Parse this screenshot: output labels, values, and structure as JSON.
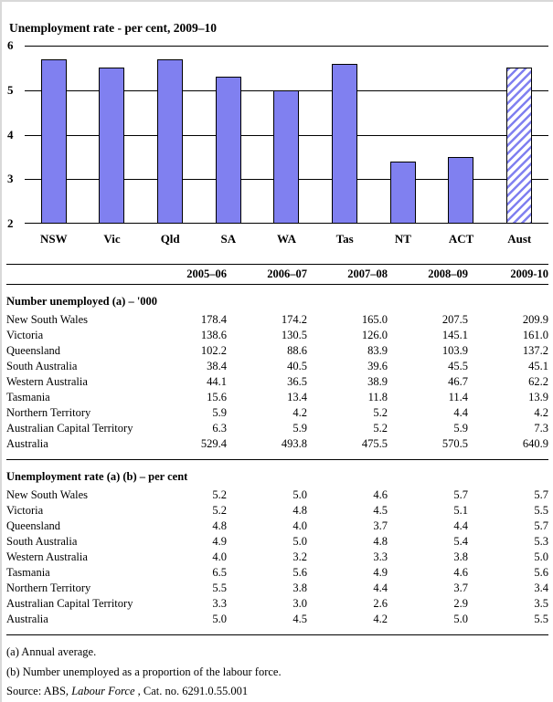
{
  "chart_data": {
    "type": "bar",
    "title": "Unemployment rate - per cent, 2009–10",
    "categories": [
      "NSW",
      "Vic",
      "Qld",
      "SA",
      "WA",
      "Tas",
      "NT",
      "ACT",
      "Aust"
    ],
    "values": [
      5.7,
      5.5,
      5.7,
      5.3,
      5.0,
      5.6,
      3.4,
      3.5,
      5.5
    ],
    "hatched_category": "Aust",
    "xlabel": "",
    "ylabel": "",
    "ylim": [
      2,
      6
    ],
    "yticks": [
      2,
      3,
      4,
      5,
      6
    ],
    "grid": true,
    "legend": "none",
    "bar_color": "#8080F0",
    "bar_border_color": "#000000"
  },
  "table": {
    "col_headers": [
      "2005–06",
      "2006–07",
      "2007–08",
      "2008–09",
      "2009-10"
    ],
    "sections": [
      {
        "heading": "Number unemployed (a) – '000",
        "rows": [
          {
            "label": "New South Wales",
            "values": [
              "178.4",
              "174.2",
              "165.0",
              "207.5",
              "209.9"
            ]
          },
          {
            "label": "Victoria",
            "values": [
              "138.6",
              "130.5",
              "126.0",
              "145.1",
              "161.0"
            ]
          },
          {
            "label": "Queensland",
            "values": [
              "102.2",
              "88.6",
              "83.9",
              "103.9",
              "137.2"
            ]
          },
          {
            "label": "South Australia",
            "values": [
              "38.4",
              "40.5",
              "39.6",
              "45.5",
              "45.1"
            ]
          },
          {
            "label": "Western Australia",
            "values": [
              "44.1",
              "36.5",
              "38.9",
              "46.7",
              "62.2"
            ]
          },
          {
            "label": "Tasmania",
            "values": [
              "15.6",
              "13.4",
              "11.8",
              "11.4",
              "13.9"
            ]
          },
          {
            "label": "Northern Territory",
            "values": [
              "5.9",
              "4.2",
              "5.2",
              "4.4",
              "4.2"
            ]
          },
          {
            "label": "Australian Capital Territory",
            "values": [
              "6.3",
              "5.9",
              "5.2",
              "5.9",
              "7.3"
            ]
          },
          {
            "label": "Australia",
            "values": [
              "529.4",
              "493.8",
              "475.5",
              "570.5",
              "640.9"
            ]
          }
        ]
      },
      {
        "heading": "Unemployment rate (a) (b) – per cent",
        "rows": [
          {
            "label": "New South Wales",
            "values": [
              "5.2",
              "5.0",
              "4.6",
              "5.7",
              "5.7"
            ]
          },
          {
            "label": "Victoria",
            "values": [
              "5.2",
              "4.8",
              "4.5",
              "5.1",
              "5.5"
            ]
          },
          {
            "label": "Queensland",
            "values": [
              "4.8",
              "4.0",
              "3.7",
              "4.4",
              "5.7"
            ]
          },
          {
            "label": "South Australia",
            "values": [
              "4.9",
              "5.0",
              "4.8",
              "5.4",
              "5.3"
            ]
          },
          {
            "label": "Western Australia",
            "values": [
              "4.0",
              "3.2",
              "3.3",
              "3.8",
              "5.0"
            ]
          },
          {
            "label": "Tasmania",
            "values": [
              "6.5",
              "5.6",
              "4.9",
              "4.6",
              "5.6"
            ]
          },
          {
            "label": "Northern Territory",
            "values": [
              "5.5",
              "3.8",
              "4.4",
              "3.7",
              "3.4"
            ]
          },
          {
            "label": "Australian Capital Territory",
            "values": [
              "3.3",
              "3.0",
              "2.6",
              "2.9",
              "3.5"
            ]
          },
          {
            "label": "Australia",
            "values": [
              "5.0",
              "4.5",
              "4.2",
              "5.0",
              "5.5"
            ]
          }
        ]
      }
    ]
  },
  "footnotes": {
    "a": "(a) Annual average.",
    "b": "(b) Number unemployed as a proportion of the labour force.",
    "source_prefix": "Source: ABS, ",
    "source_italic": "Labour Force",
    "source_suffix": " , Cat. no. 6291.0.55.001"
  }
}
